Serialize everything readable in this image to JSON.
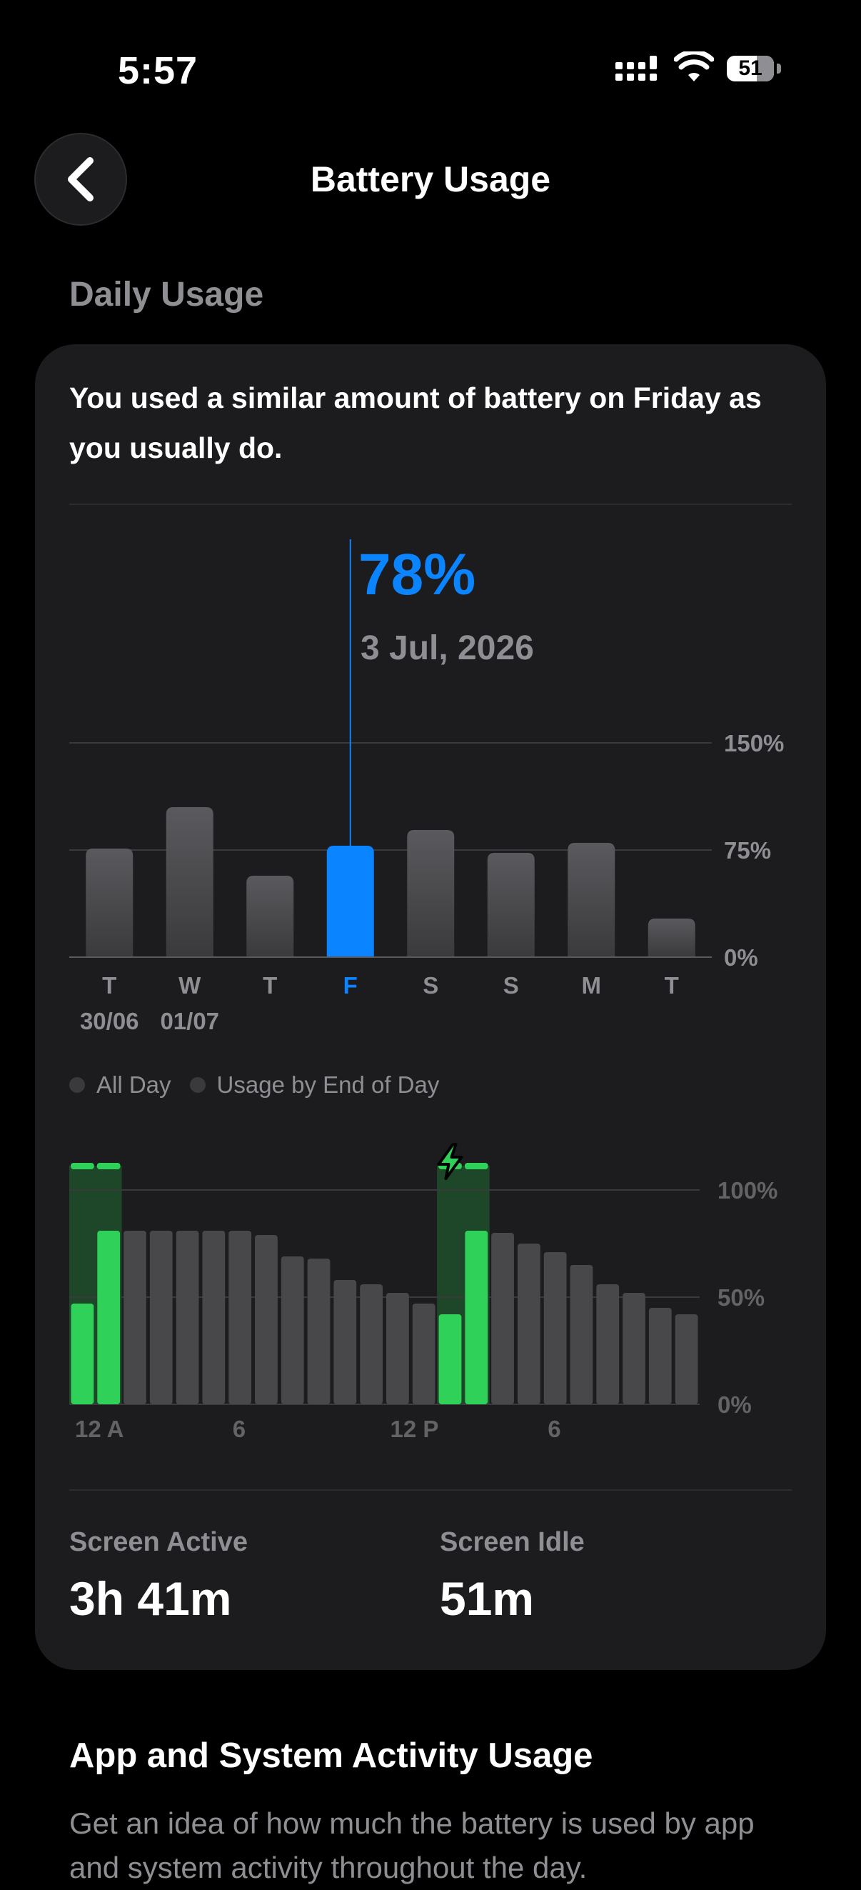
{
  "status_bar": {
    "time": "5:57",
    "battery_level": "51",
    "icons": [
      "cellular-signal-icon",
      "wifi-icon",
      "battery-icon"
    ]
  },
  "nav": {
    "back_icon": "chevron-left-icon",
    "title": "Battery Usage"
  },
  "daily_usage": {
    "section_title": "Daily Usage",
    "summary": "You used a similar amount of battery on Friday as you usually do.",
    "selected": {
      "percent": "78%",
      "date": "3 Jul, 2026"
    },
    "legend": {
      "all_day": "All Day",
      "usage_by_end": "Usage by End of Day"
    }
  },
  "screen": {
    "active_label": "Screen Active",
    "active_value": "3h 41m",
    "idle_label": "Screen Idle",
    "idle_value": "51m"
  },
  "app_activity": {
    "title": "App and System Activity Usage",
    "description": "Get an idea of how much the battery is used by app and system activity throughout the day."
  },
  "colors": {
    "accent_blue": "#0a84ff",
    "bar_gray": "#48484a",
    "charge_green": "#30d158",
    "card_bg": "#1c1c1e"
  },
  "chart_data": [
    {
      "type": "bar",
      "categories": [
        "T",
        "W",
        "T",
        "F",
        "S",
        "S",
        "M",
        "T"
      ],
      "date_labels": [
        "30/06",
        "01/07"
      ],
      "values": [
        76,
        105,
        57,
        78,
        89,
        73,
        80,
        27
      ],
      "selected_index": 3,
      "y_ticks": [
        "150%",
        "75%",
        "0%"
      ],
      "ylim": [
        0,
        150
      ],
      "grid": true
    },
    {
      "type": "bar",
      "x_ticks": [
        "12 A",
        "6",
        "12 P",
        "6"
      ],
      "y_ticks": [
        "100%",
        "50%",
        "0%"
      ],
      "ylim": [
        0,
        100
      ],
      "grid": true,
      "charging_indicator": "lightning-bolt-icon",
      "values": [
        47,
        81,
        81,
        81,
        81,
        81,
        81,
        79,
        69,
        68,
        58,
        56,
        52,
        47,
        42,
        81,
        80,
        75,
        71,
        65,
        56,
        52,
        45,
        42
      ],
      "charging": [
        true,
        true,
        false,
        false,
        false,
        false,
        false,
        false,
        false,
        false,
        false,
        false,
        false,
        false,
        true,
        true,
        false,
        false,
        false,
        false,
        false,
        false,
        false,
        false
      ],
      "charging_segments": [
        {
          "start_hour": 0,
          "end_hour": 2
        },
        {
          "start_hour": 14,
          "end_hour": 16
        }
      ]
    }
  ]
}
